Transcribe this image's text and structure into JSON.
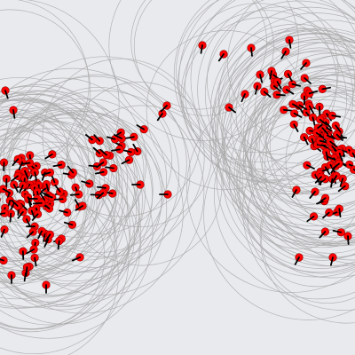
{
  "scene": {
    "background_color": "#e9eaee",
    "ring_color": "#a9a9a9",
    "agent_color": "#ff0000",
    "agent_border_color": "#8b0000",
    "heading_color": "#000000",
    "agent_shape": "red-disc-with-black-heading-line",
    "ring_shape": "thin-gray-circle-outline",
    "cluster_count": 2
  }
}
